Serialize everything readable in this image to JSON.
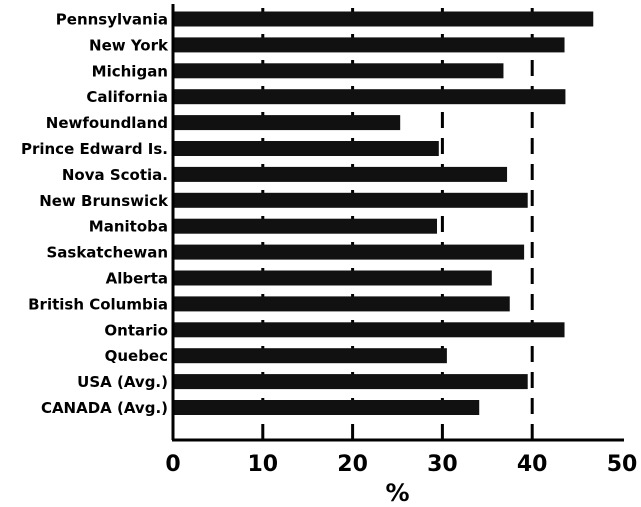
{
  "chart_data": {
    "type": "bar",
    "orientation": "horizontal",
    "categories": [
      "Pennsylvania",
      "New York",
      "Michigan",
      "California",
      "Newfoundland",
      "Prince Edward Is.",
      "Nova Scotia.",
      "New Brunswick",
      "Manitoba",
      "Saskatchewan",
      "Alberta",
      "British Columbia",
      "Ontario",
      "Quebec",
      "USA (Avg.)",
      "CANADA (Avg.)"
    ],
    "values": [
      46.8,
      43.6,
      36.8,
      43.7,
      25.3,
      29.6,
      37.2,
      39.5,
      29.4,
      39.1,
      35.5,
      37.5,
      43.6,
      30.5,
      39.5,
      34.1
    ],
    "xlabel": "%",
    "xlim": [
      0,
      50
    ],
    "xticks": [
      "0",
      "10",
      "20",
      "30",
      "40",
      "50"
    ],
    "gridlines": [
      10,
      20,
      30,
      40
    ],
    "grid_style": "dashed-vertical",
    "bar_color": "#111111"
  }
}
